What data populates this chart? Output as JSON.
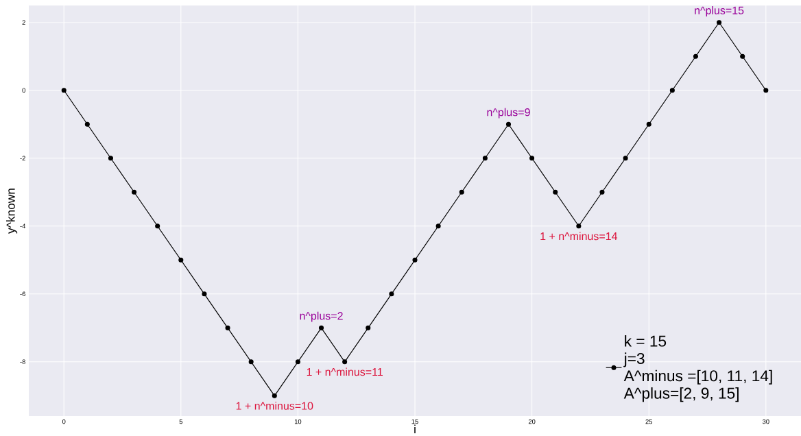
{
  "chart_data": {
    "type": "line",
    "xlabel": "i",
    "ylabel": "y^known",
    "x": [
      0,
      1,
      2,
      3,
      4,
      5,
      6,
      7,
      8,
      9,
      10,
      11,
      12,
      13,
      14,
      15,
      16,
      17,
      18,
      19,
      20,
      21,
      22,
      23,
      24,
      25,
      26,
      27,
      28,
      29,
      30
    ],
    "series": [
      {
        "name": "k = 15\nj=3\nA^minus =[10, 11, 14]\nA^plus=[2, 9, 15]",
        "color": "#000000",
        "values": [
          0,
          -1,
          -2,
          -3,
          -4,
          -5,
          -6,
          -7,
          -8,
          -9,
          -8,
          -7,
          -8,
          -7,
          -6,
          -5,
          -4,
          -3,
          -2,
          -1,
          -2,
          -3,
          -4,
          -3,
          -2,
          -1,
          0,
          1,
          2,
          1,
          0
        ]
      }
    ],
    "annotations": [
      {
        "text": "n^plus=2",
        "x": 11,
        "y": -7
      },
      {
        "text": "1 + n^minus=10",
        "x": 9,
        "y": -9
      },
      {
        "text": "1 + n^minus=11",
        "x": 12,
        "y": -8
      },
      {
        "text": "n^plus=9",
        "x": 19,
        "y": -1
      },
      {
        "text": "1 + n^minus=14",
        "x": 22,
        "y": -4
      },
      {
        "text": "n^plus=15",
        "x": 28,
        "y": 2
      }
    ],
    "xlim": [
      -1.5,
      31.5
    ],
    "ylim": [
      -9.6,
      2.5
    ],
    "xticks": [
      0,
      5,
      10,
      15,
      20,
      25,
      30
    ],
    "yticks": [
      -8,
      -6,
      -4,
      -2,
      0,
      2
    ],
    "grid": true,
    "legend": "bottom right",
    "marker": "circle",
    "line_style": "solid"
  }
}
